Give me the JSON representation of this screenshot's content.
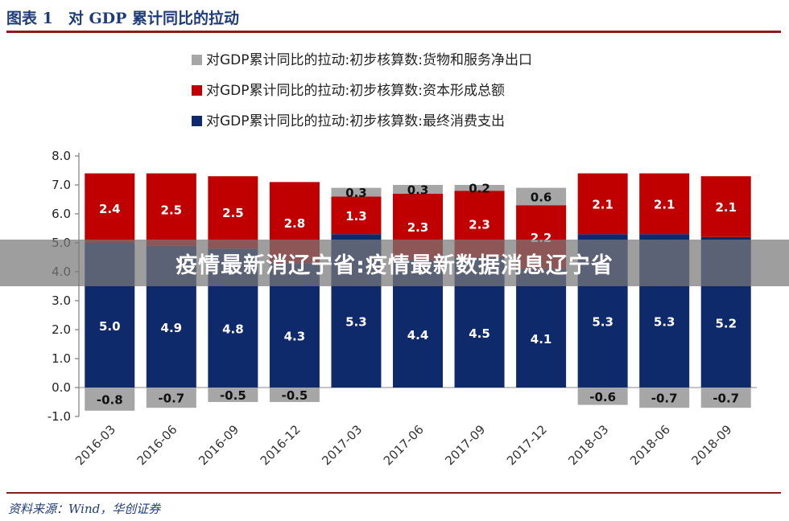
{
  "header": {
    "title": "图表 1　对 GDP 累计同比的拉动"
  },
  "footer": {
    "source": "资料来源：Wind，华创证券"
  },
  "banner": {
    "text": "疫情最新消辽宁省:疫情最新数据消息辽宁省"
  },
  "colors": {
    "net_exports": "#a6a6a6",
    "capital": "#c00000",
    "consumption": "#0f2a6b",
    "title": "#1f3c7a",
    "rule": "#8a1c1c"
  },
  "chart_data": {
    "type": "bar",
    "stacked": true,
    "categories": [
      "2016-03",
      "2016-06",
      "2016-09",
      "2016-12",
      "2017-03",
      "2017-06",
      "2017-09",
      "2017-12",
      "2018-03",
      "2018-06",
      "2018-09"
    ],
    "series": [
      {
        "name": "对GDP累计同比的拉动:初步核算数:最终消费支出",
        "color": "#0f2a6b",
        "values": [
          5.0,
          4.9,
          4.8,
          4.3,
          5.3,
          4.4,
          4.5,
          4.1,
          5.3,
          5.3,
          5.2
        ]
      },
      {
        "name": "对GDP累计同比的拉动:初步核算数:资本形成总额",
        "color": "#c00000",
        "values": [
          2.4,
          2.5,
          2.5,
          2.8,
          1.3,
          2.3,
          2.3,
          2.2,
          2.1,
          2.1,
          2.1
        ]
      },
      {
        "name": "对GDP累计同比的拉动:初步核算数:货物和服务净出口",
        "color": "#a6a6a6",
        "values": [
          -0.8,
          -0.7,
          -0.5,
          -0.5,
          0.3,
          0.3,
          0.2,
          0.6,
          -0.6,
          -0.7,
          -0.7
        ]
      }
    ],
    "value_labels": {
      "consumption": [
        "5.0",
        "4.9",
        "4.8",
        "4.3",
        "5.3",
        "4.4",
        "4.5",
        "4.1",
        "5.3",
        "5.3",
        "5.2"
      ],
      "capital": [
        "2.4",
        "2.5",
        "2.5",
        "2.8",
        "1.3",
        "2.3",
        "2.3",
        "2.2",
        "2.1",
        "2.1",
        "2.1"
      ],
      "net_exports": [
        "-0.8",
        "-0.7",
        "-0.5",
        "-0.5",
        "0.3",
        "0.3",
        "0.2",
        "0.6",
        "-0.6",
        "-0.7",
        "-0.7"
      ]
    },
    "ylim": [
      -1.0,
      8.0
    ],
    "yticks": [
      "8.0",
      "7.0",
      "6.0",
      "5.0",
      "4.0",
      "3.0",
      "2.0",
      "1.0",
      "0.0",
      "-1.0"
    ],
    "ytick_values": [
      8,
      7,
      6,
      5,
      4,
      3,
      2,
      1,
      0,
      -1
    ],
    "legend": {
      "position": "top-center",
      "items": [
        "对GDP累计同比的拉动:初步核算数:货物和服务净出口",
        "对GDP累计同比的拉动:初步核算数:资本形成总额",
        "对GDP累计同比的拉动:初步核算数:最终消费支出"
      ]
    },
    "xlabel": "",
    "ylabel": "",
    "grid": false
  }
}
